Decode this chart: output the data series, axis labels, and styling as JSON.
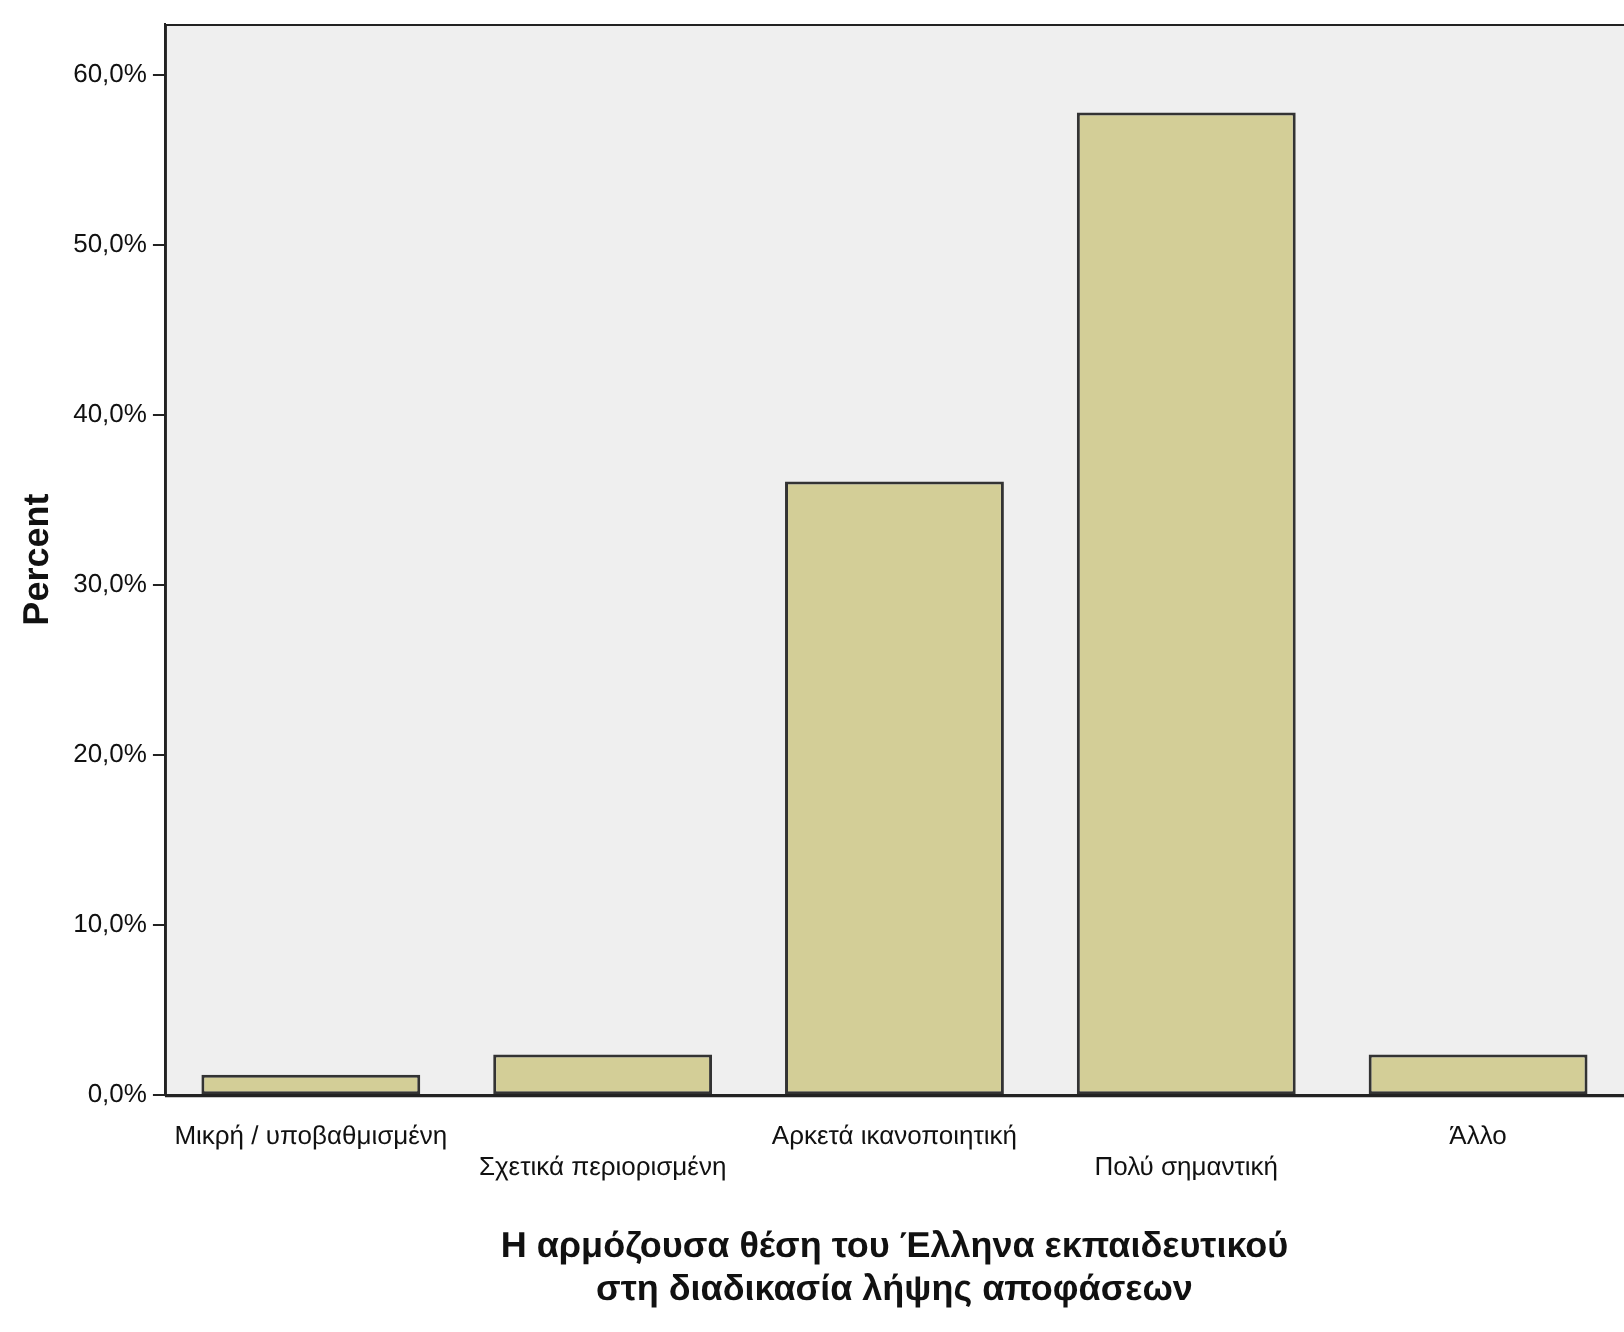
{
  "chart_data": {
    "type": "bar",
    "xlabel": "Η αρμόζουσα θέση του Έλληνα εκπαιδευτικού\nστη διαδικασία λήψης αποφάσεων",
    "ylabel": "Percent",
    "categories": [
      "Μικρή / υποβαθμισμένη",
      "Σχετικά περιορισμένη",
      "Αρκετά ικανοποιητική",
      "Πολύ σημαντική",
      "Άλλο"
    ],
    "values": [
      1.2,
      2.4,
      36.1,
      57.8,
      2.4
    ],
    "color": "#d3ce97",
    "ylim": [
      0,
      63
    ],
    "yticks": [
      {
        "value": 0,
        "label": "0,0%"
      },
      {
        "value": 10,
        "label": "10,0%"
      },
      {
        "value": 20,
        "label": "20,0%"
      },
      {
        "value": 30,
        "label": "30,0%"
      },
      {
        "value": 40,
        "label": "40,0%"
      },
      {
        "value": 50,
        "label": "50,0%"
      },
      {
        "value": 60,
        "label": "60,0%"
      }
    ],
    "grid": false,
    "legend": false
  }
}
